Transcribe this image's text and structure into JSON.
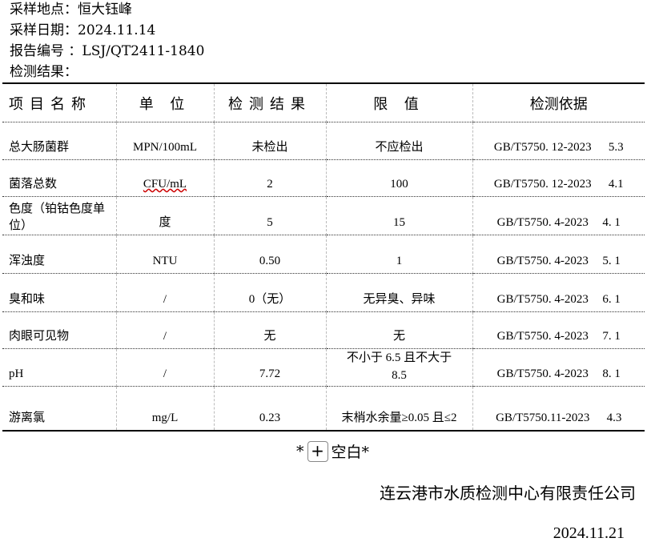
{
  "header": {
    "location": "采样地点：恒大钰峰",
    "date": "采样日期：2024.11.14",
    "report_no": "报告编号 ：LSJ/QT2411-1840",
    "results_label": "检测结果："
  },
  "table": {
    "columns": [
      "项目名称",
      "单 位",
      "检测结果",
      "限 值",
      "检测依据"
    ],
    "rows": [
      {
        "name": "总大肠菌群",
        "unit": "MPN/100mL",
        "result": "未检出",
        "limit": "不应检出",
        "std": "GB/T5750. 12-2023",
        "clause": "5.3"
      },
      {
        "name": "菌落总数",
        "unit": "CFU/mL",
        "result": "2",
        "limit": "100",
        "std": "GB/T5750. 12-2023",
        "clause": "4.1"
      },
      {
        "name": "色度（铂钴色度单位）",
        "unit": "度",
        "result": "5",
        "limit": "15",
        "std": "GB/T5750. 4-2023",
        "clause": "4. 1"
      },
      {
        "name": "浑浊度",
        "unit": "NTU",
        "result": "0.50",
        "limit": "1",
        "std": "GB/T5750. 4-2023",
        "clause": "5. 1"
      },
      {
        "name": "臭和味",
        "unit": "/",
        "result": "0（无）",
        "limit": "无异臭、异味",
        "std": "GB/T5750. 4-2023",
        "clause": "6. 1"
      },
      {
        "name": "肉眼可见物",
        "unit": "/",
        "result": "无",
        "limit": "无",
        "std": "GB/T5750. 4-2023",
        "clause": "7. 1"
      },
      {
        "name": "pH",
        "unit": "/",
        "result": "7.72",
        "limit": "不小于 6.5 且不大于 8.5",
        "std": "GB/T5750. 4-2023",
        "clause": "8. 1"
      },
      {
        "name": "游离氯",
        "unit": "mg/L",
        "result": "0.23",
        "limit": "末梢水余量≥0.05 且≤2",
        "std": "GB/T5750.11-2023",
        "clause": "4.3"
      }
    ]
  },
  "footer": {
    "blank_prefix": "*",
    "blank_text": "空白*",
    "plus_icon": "plus-icon",
    "org": "连云港市水质检测中心有限责任公司",
    "date": "2024.11.21"
  }
}
